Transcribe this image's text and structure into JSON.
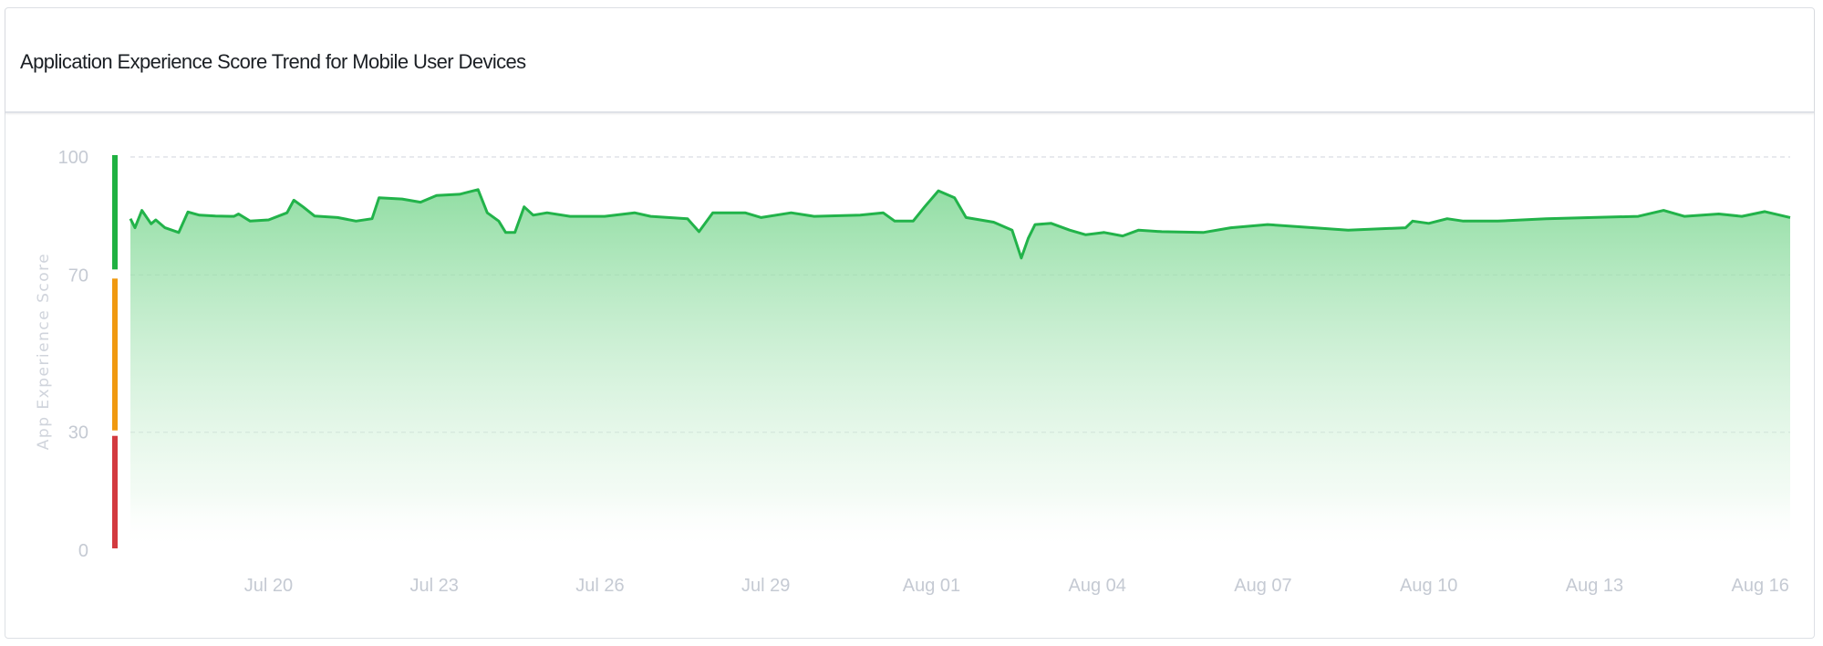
{
  "chart_data": {
    "type": "area",
    "title": "Application Experience Score Trend for Mobile User Devices",
    "xlabel": "",
    "ylabel": "App Experience Score",
    "ylim": [
      0,
      100
    ],
    "xlim": [
      "07-17T12",
      "08-16T13"
    ],
    "y_ticks": [
      "100",
      "70",
      "30",
      "0"
    ],
    "x_ticks": [
      {
        "label": "Jul 20",
        "date": "07-20T00"
      },
      {
        "label": "Jul 23",
        "date": "07-23T00"
      },
      {
        "label": "Jul 26",
        "date": "07-26T00"
      },
      {
        "label": "Jul 29",
        "date": "07-29T00"
      },
      {
        "label": "Aug 01",
        "date": "08-01T00"
      },
      {
        "label": "Aug 04",
        "date": "08-04T00"
      },
      {
        "label": "Aug 07",
        "date": "08-07T00"
      },
      {
        "label": "Aug 10",
        "date": "08-10T00"
      },
      {
        "label": "Aug 13",
        "date": "08-13T00"
      },
      {
        "label": "Aug 16",
        "date": "08-16T00"
      }
    ],
    "grid": "horizontal dashed at 100, 70, 30",
    "thresholds": [
      {
        "range": [
          70,
          100
        ],
        "color": "#1fb141"
      },
      {
        "range": [
          30,
          70
        ],
        "color": "#f0990f"
      },
      {
        "range": [
          0,
          30
        ],
        "color": "#d33a3f"
      }
    ],
    "line_color": "#22b34a",
    "fill_color": "#7fd894",
    "x": [
      "07-17T12",
      "07-17T14",
      "07-17T17",
      "07-17T21",
      "07-17T23",
      "07-18T03",
      "07-18T09",
      "07-18T13",
      "07-18T18",
      "07-19T01",
      "07-19T09",
      "07-19T11",
      "07-19T16",
      "07-20T00",
      "07-20T08",
      "07-20T11",
      "07-20T15",
      "07-20T20",
      "07-21T06",
      "07-21T14",
      "07-21T21",
      "07-22T00",
      "07-22T10",
      "07-22T18",
      "07-23T01",
      "07-23T11",
      "07-23T19",
      "07-23T23",
      "07-24T04",
      "07-24T07",
      "07-24T11",
      "07-24T15",
      "07-24T19",
      "07-25T01",
      "07-25T11",
      "07-26T02",
      "07-26T15",
      "07-26T22",
      "07-27T14",
      "07-27T19",
      "07-28T01",
      "07-28T15",
      "07-28T22",
      "07-29T11",
      "07-29T21",
      "07-30T17",
      "07-31T03",
      "07-31T08",
      "07-31T16",
      "07-31T21",
      "08-01T03",
      "08-01T10",
      "08-01T15",
      "08-02T03",
      "08-02T11",
      "08-02T15",
      "08-02T18",
      "08-02T21",
      "08-03T04",
      "08-03T12",
      "08-03T19",
      "08-04T03",
      "08-04T11",
      "08-04T18",
      "08-05T04",
      "08-05T22",
      "08-06T10",
      "08-07T02",
      "08-07T17",
      "08-08T13",
      "08-09T14",
      "08-09T17",
      "08-10T00",
      "08-10T08",
      "08-10T15",
      "08-11T06",
      "08-12T03",
      "08-12T23",
      "08-13T19",
      "08-14T06",
      "08-14T15",
      "08-15T06",
      "08-15T16",
      "08-16T02",
      "08-16T13"
    ],
    "values": [
      84.3,
      82,
      86.4,
      83,
      84,
      82,
      80.8,
      86,
      85.2,
      85,
      84.9,
      85.5,
      83.7,
      84,
      85.8,
      89,
      87.3,
      85,
      84.6,
      83.7,
      84.3,
      89.6,
      89.3,
      88.5,
      90.2,
      90.5,
      91.7,
      85.8,
      83.7,
      80.8,
      80.8,
      87.3,
      85.2,
      85.8,
      84.9,
      84.9,
      85.8,
      84.9,
      84.3,
      81,
      85.8,
      85.8,
      84.6,
      85.8,
      84.9,
      85.2,
      85.8,
      83.7,
      83.7,
      87.3,
      91.4,
      89.6,
      84.6,
      83.4,
      81.4,
      74.3,
      79.3,
      82.8,
      83.1,
      81.4,
      80.2,
      80.8,
      79.9,
      81.4,
      81,
      80.8,
      82,
      82.8,
      82.2,
      81.4,
      82,
      83.7,
      83.1,
      84.3,
      83.7,
      83.7,
      84.3,
      84.6,
      84.9,
      86.4,
      84.9,
      85.5,
      84.9,
      86.1,
      84.6
    ]
  }
}
